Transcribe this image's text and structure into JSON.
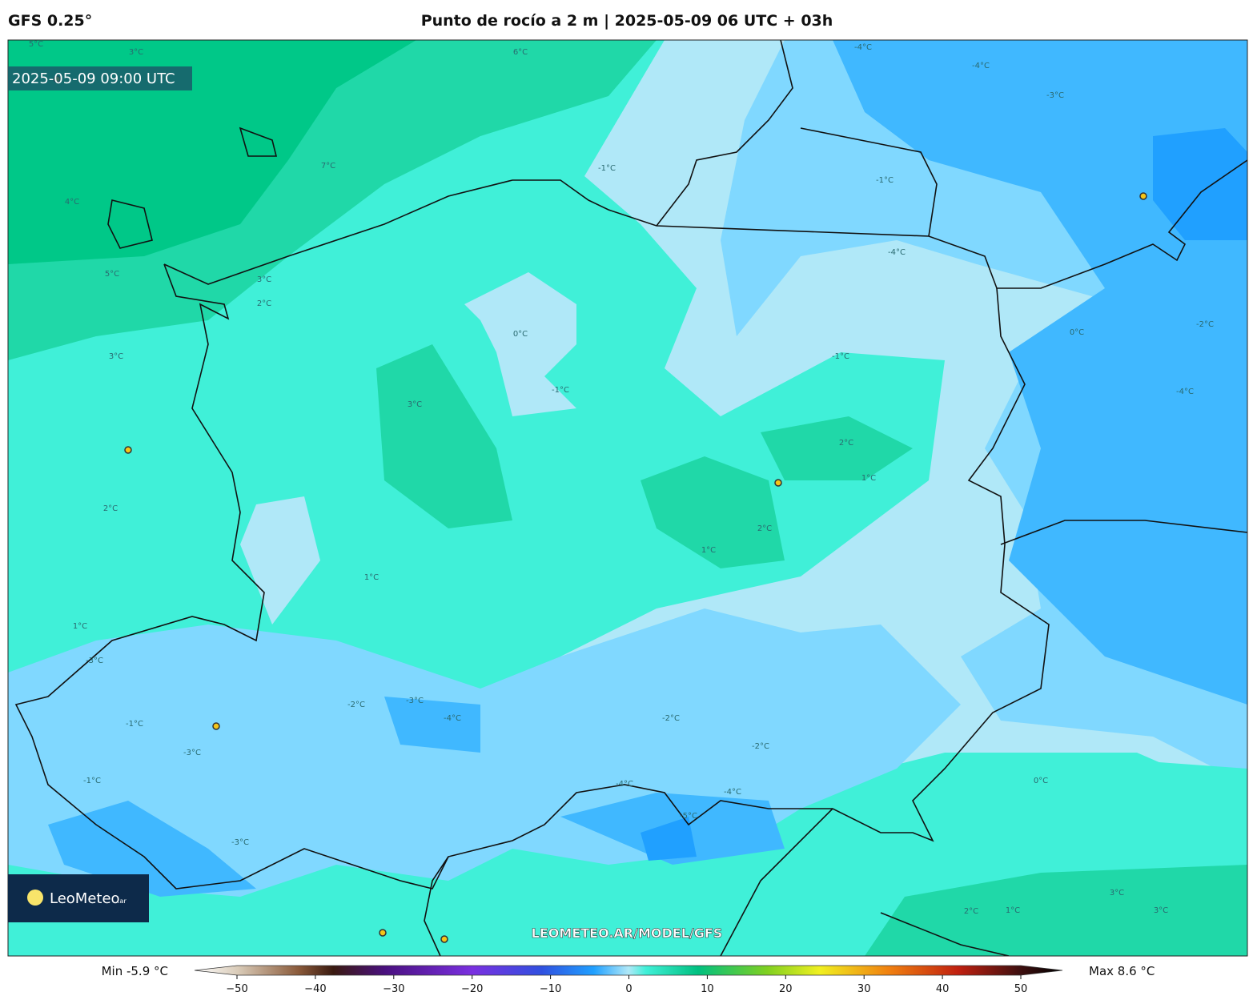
{
  "header": {
    "model": "GFS 0.25°",
    "title": "Punto de rocío a 2 m | 2025-05-09 06 UTC + 03h"
  },
  "map": {
    "valid_time": "2025-05-09 09:00 UTC",
    "logo": "LeoMeteo",
    "logo_suffix": ".ar",
    "watermark": "LEOMETEO.AR/MODEL/GFS",
    "contour_labels": [
      "5°C",
      "3°C",
      "6°C",
      "7°C",
      "4°C",
      "5°C",
      "3°C",
      "2°C",
      "3°C",
      "3°C",
      "2°C",
      "1°C",
      "0°C",
      "-1°C",
      "-1°C",
      "-4°C",
      "-4°C",
      "-3°C",
      "-1°C",
      "-4°C",
      "-1°C",
      "0°C",
      "-2°C",
      "-4°C",
      "2°C",
      "1°C",
      "2°C",
      "1°C",
      "1°C",
      "-3°C",
      "-2°C",
      "-3°C",
      "-1°C",
      "-3°C",
      "-4°C",
      "-2°C",
      "-2°C",
      "-4°C",
      "-4°C",
      "-5°C",
      "-3°C",
      "-1°C",
      "0°C",
      "2°C",
      "3°C",
      "3°C",
      "1°C"
    ]
  },
  "colorbar": {
    "min_label": "Min -5.9 °C",
    "max_label": "Max 8.6 °C",
    "xlim": [
      -50,
      50
    ],
    "xticks": [
      {
        "value": -50,
        "label": "−50"
      },
      {
        "value": -40,
        "label": "−40"
      },
      {
        "value": -30,
        "label": "−30"
      },
      {
        "value": -20,
        "label": "−20"
      },
      {
        "value": -10,
        "label": "−10"
      },
      0,
      10,
      20,
      30,
      40,
      50
    ]
  }
}
